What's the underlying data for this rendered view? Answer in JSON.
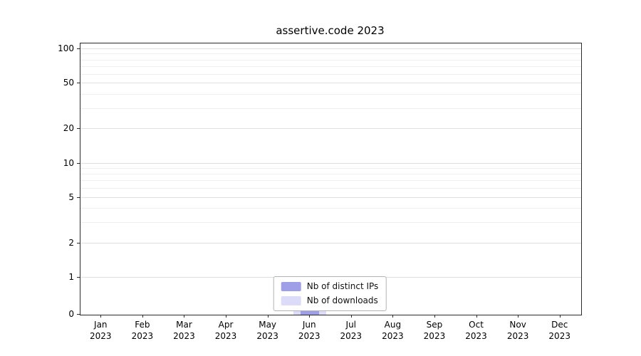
{
  "chart_data": {
    "type": "bar",
    "title": "assertive.code 2023",
    "categories": [
      "Jan",
      "Feb",
      "Mar",
      "Apr",
      "May",
      "Jun",
      "Jul",
      "Aug",
      "Sep",
      "Oct",
      "Nov",
      "Dec"
    ],
    "year_label": "2023",
    "series": [
      {
        "name": "Nb of distinct IPs",
        "color": "#9f9fe8",
        "values": [
          0,
          0,
          0,
          0,
          0,
          1,
          0,
          0,
          0,
          0,
          0,
          0
        ]
      },
      {
        "name": "Nb of downloads",
        "color": "#dcdcf8",
        "values": [
          0,
          0,
          0,
          0,
          0,
          1,
          0,
          0,
          0,
          0,
          0,
          0
        ]
      }
    ],
    "yticks": [
      0,
      1,
      2,
      5,
      10,
      20,
      50,
      100
    ],
    "ylim": [
      0,
      100
    ],
    "yscale": "symlog",
    "grid": true,
    "legend_position": "bottom-center",
    "axis_color": "#2a2a2a",
    "major_grid_color": "#e0e0e0",
    "minor_grid_color": "#efefef"
  }
}
